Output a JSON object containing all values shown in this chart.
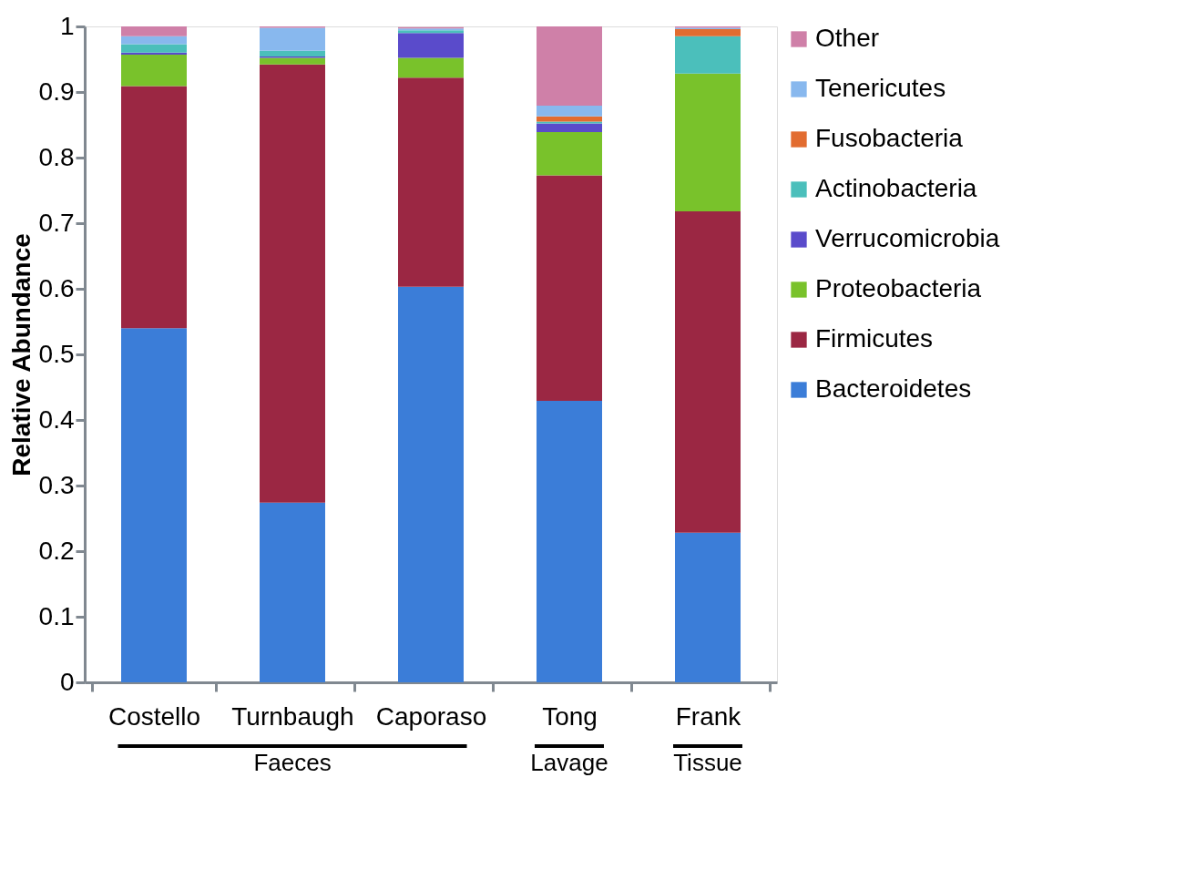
{
  "chart_data": {
    "type": "bar",
    "stacked": true,
    "ylabel": "Relative Abundance",
    "categories": [
      "Costello",
      "Turnbaugh",
      "Caporaso",
      "Tong",
      "Frank"
    ],
    "series": [
      {
        "name": "Bacteroidetes",
        "color": "#3b7dd8",
        "values": [
          0.54,
          0.274,
          0.603,
          0.429,
          0.228
        ]
      },
      {
        "name": "Firmicutes",
        "color": "#9b2743",
        "values": [
          0.369,
          0.668,
          0.319,
          0.344,
          0.49
        ]
      },
      {
        "name": "Proteobacteria",
        "color": "#79c22b",
        "values": [
          0.048,
          0.01,
          0.03,
          0.066,
          0.21
        ]
      },
      {
        "name": "Verrucomicrobia",
        "color": "#5a4bcb",
        "values": [
          0.003,
          0.002,
          0.038,
          0.013,
          0
        ]
      },
      {
        "name": "Actinobacteria",
        "color": "#4bbfbb",
        "values": [
          0.013,
          0.009,
          0.004,
          0.003,
          0.057
        ]
      },
      {
        "name": "Fusobacteria",
        "color": "#e26c30",
        "values": [
          0,
          0,
          null,
          0.008,
          0.011
        ]
      },
      {
        "name": "Tenericutes",
        "color": "#88b8ee",
        "values": [
          0.012,
          0.035,
          0.003,
          0.016,
          0.002
        ]
      },
      {
        "name": "Other",
        "color": "#cf80a8",
        "values": [
          0.015,
          0.002,
          0.002,
          0.121,
          0.002
        ]
      }
    ],
    "ylim": [
      0,
      1
    ],
    "yticks": [
      {
        "value": 0,
        "label": "0"
      },
      0.1,
      0.2,
      0.3,
      0.4,
      0.5,
      0.6,
      0.7,
      0.8,
      0.9,
      {
        "value": 1,
        "label": "1"
      }
    ],
    "grid": false,
    "legend": "right",
    "annotations": [
      "Faeces",
      "Lavage",
      "Tissue"
    ]
  }
}
